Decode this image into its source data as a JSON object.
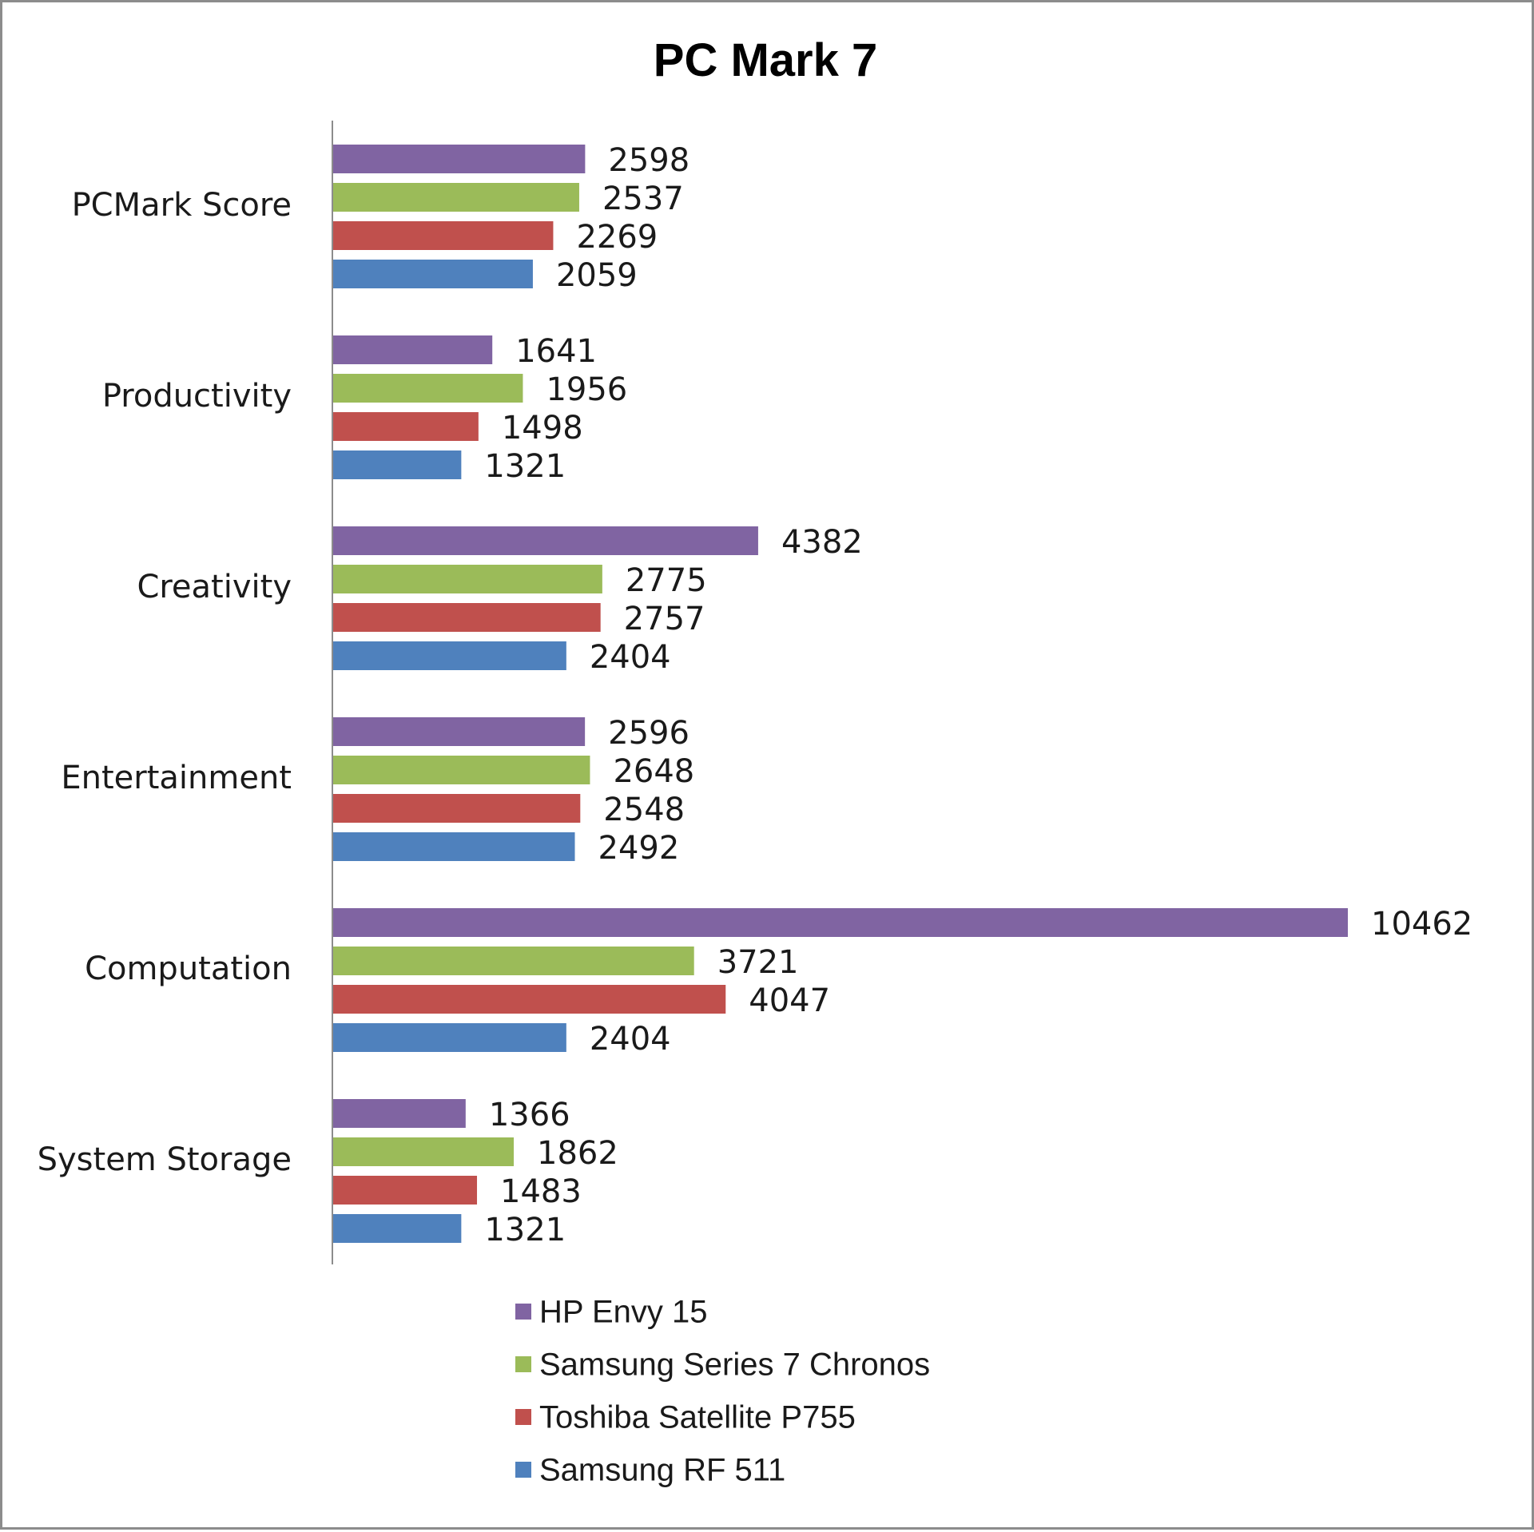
{
  "chart_data": {
    "type": "bar",
    "orientation": "horizontal",
    "title": "PC Mark 7",
    "xlabel": "",
    "ylabel": "",
    "xlim": [
      0,
      11500
    ],
    "grid": false,
    "legend_position": "bottom",
    "categories": [
      "PCMark Score",
      "Productivity",
      "Creativity",
      "Entertainment",
      "Computation",
      "System Storage"
    ],
    "series": [
      {
        "name": "HP Envy 15",
        "color": "#8064a2",
        "values": [
          2598,
          1641,
          4382,
          2596,
          10462,
          1366
        ]
      },
      {
        "name": "Samsung Series 7 Chronos",
        "color": "#9bbb59",
        "values": [
          2537,
          1956,
          2775,
          2648,
          3721,
          1862
        ]
      },
      {
        "name": "Toshiba Satellite P755",
        "color": "#c0504d",
        "values": [
          2269,
          1498,
          2757,
          2548,
          4047,
          1483
        ]
      },
      {
        "name": "Samsung RF 511",
        "color": "#4f81bd",
        "values": [
          2059,
          1321,
          2404,
          2492,
          2404,
          1321
        ]
      }
    ]
  }
}
